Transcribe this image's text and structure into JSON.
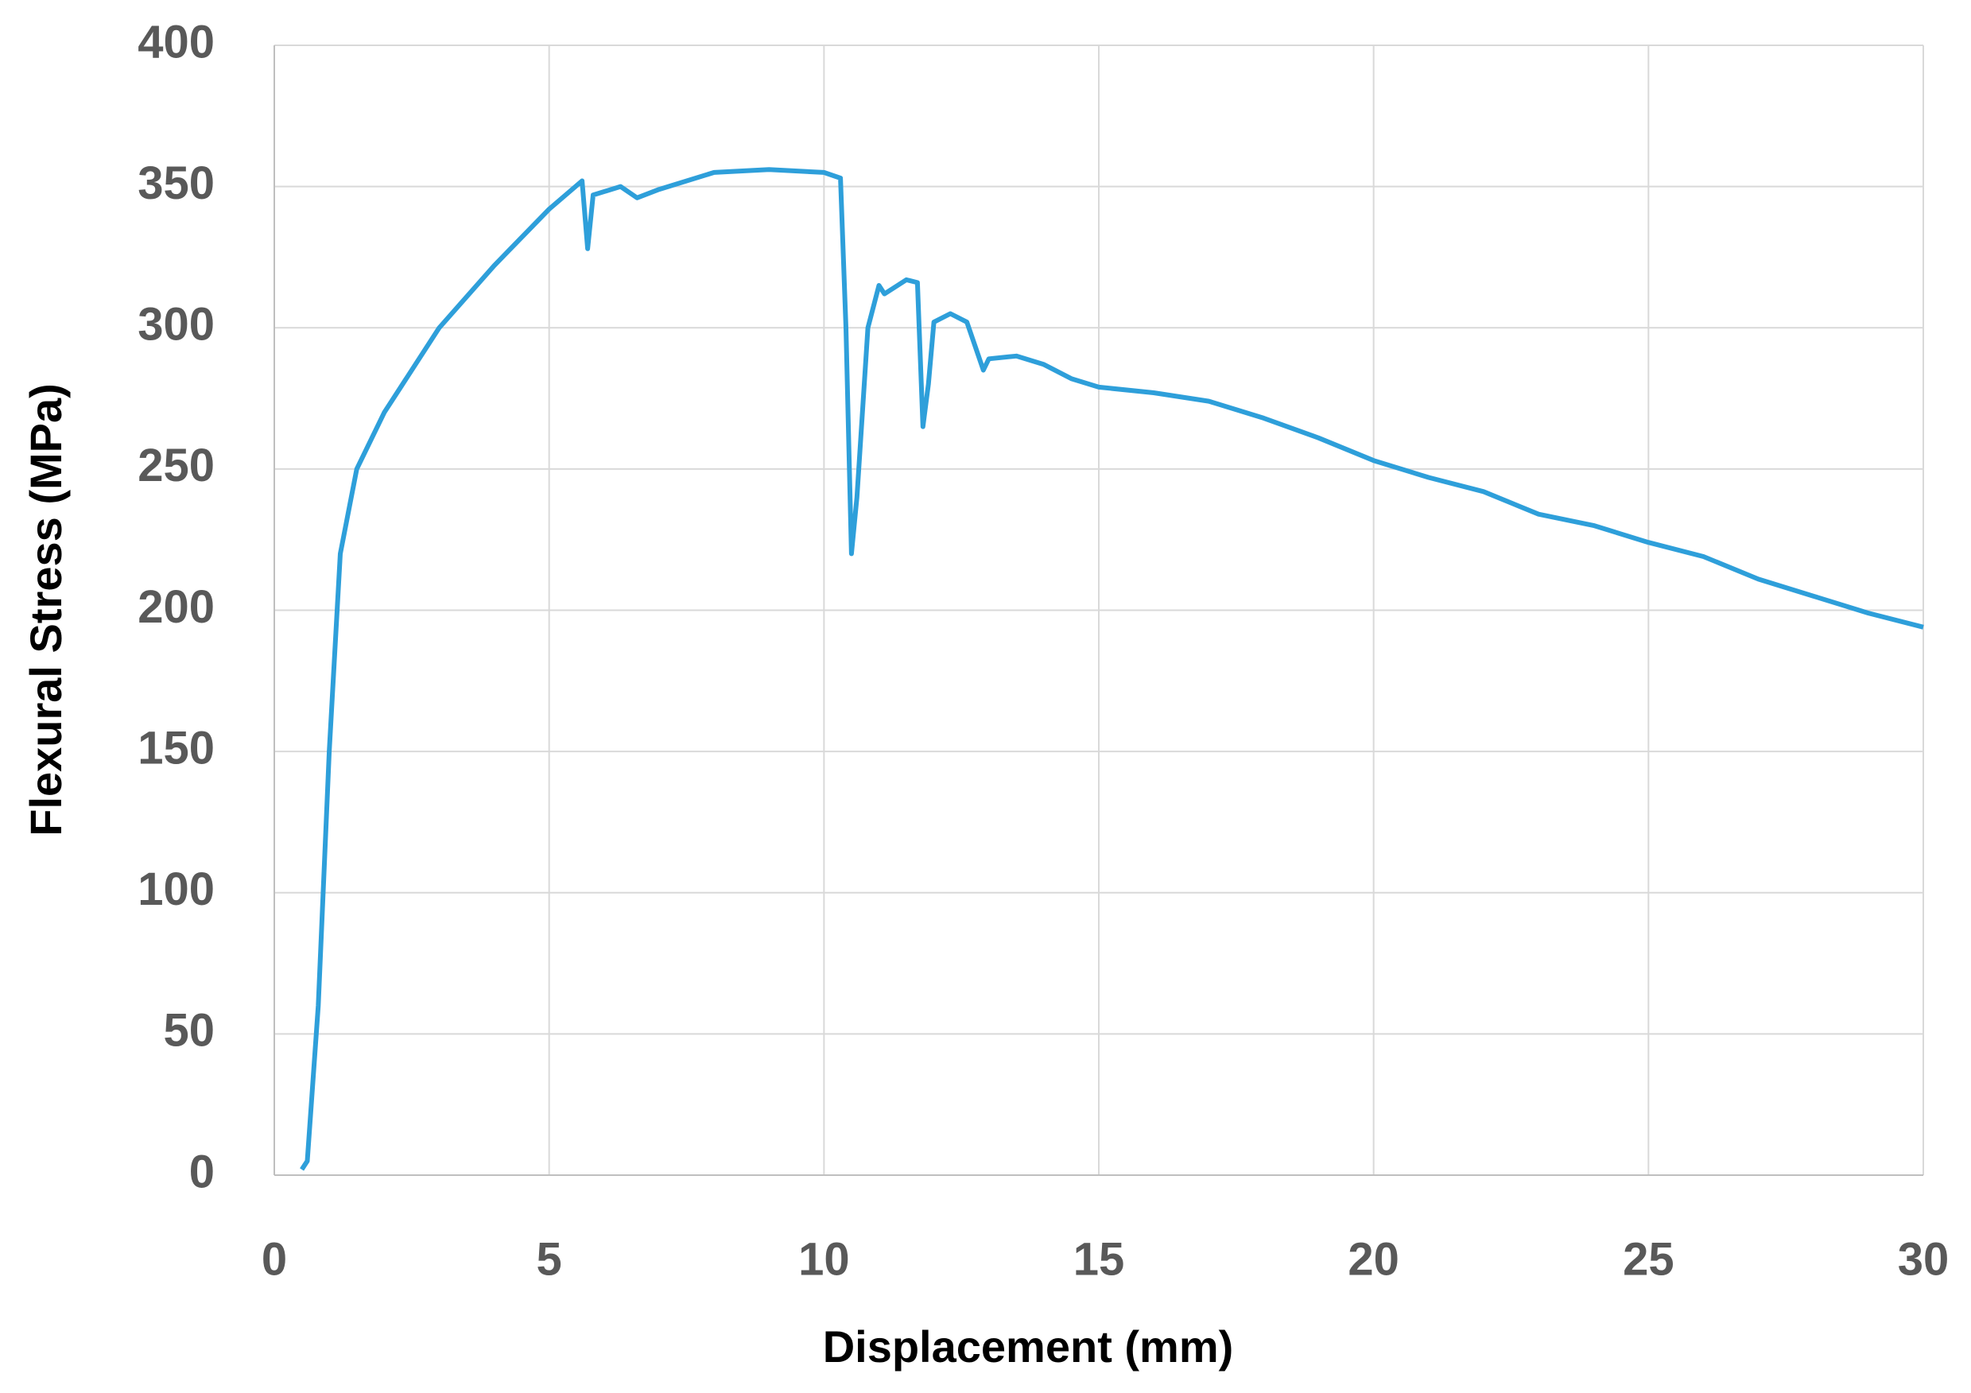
{
  "chart_data": {
    "type": "line",
    "x_label": "Displacement (mm)",
    "y_label": "Flexural Stress (MPa)",
    "xlim": [
      0,
      30
    ],
    "xticks": [
      0,
      5,
      10,
      15,
      20,
      25,
      30
    ],
    "ylim": [
      0,
      400
    ],
    "yticks": [
      0,
      50,
      100,
      150,
      200,
      250,
      300,
      350,
      400
    ],
    "grid": true,
    "series": [
      {
        "color": "#2e9fda",
        "x": [
          0.5,
          0.6,
          0.8,
          1.0,
          1.2,
          1.5,
          2,
          3,
          4,
          5,
          5.6,
          5.7,
          5.8,
          6.3,
          6.6,
          7,
          8,
          9,
          10,
          10.3,
          10.4,
          10.5,
          10.6,
          10.8,
          11,
          11.1,
          11.5,
          11.7,
          11.8,
          11.9,
          12,
          12.3,
          12.6,
          12.9,
          13,
          13.5,
          14,
          14.5,
          15,
          16,
          17,
          18,
          19,
          20,
          21,
          22,
          23,
          24,
          25,
          26,
          27,
          28,
          29,
          30
        ],
        "values": [
          2,
          5,
          60,
          150,
          220,
          250,
          270,
          300,
          322,
          342,
          352,
          328,
          347,
          350,
          346,
          349,
          355,
          356,
          355,
          353,
          300,
          220,
          240,
          300,
          315,
          312,
          317,
          316,
          265,
          280,
          302,
          305,
          302,
          285,
          289,
          290,
          287,
          282,
          279,
          277,
          274,
          268,
          261,
          253,
          247,
          242,
          234,
          230,
          224,
          219,
          211,
          205,
          199,
          194
        ]
      }
    ]
  }
}
